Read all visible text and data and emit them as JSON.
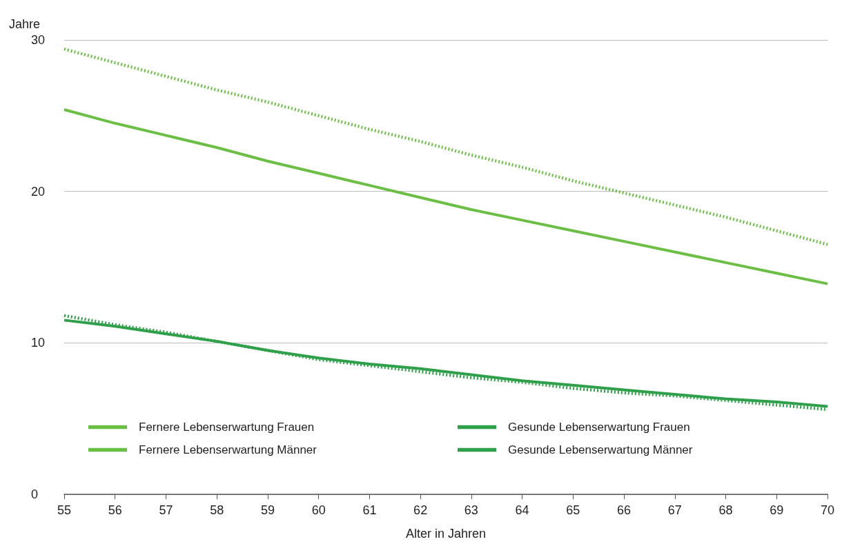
{
  "chart_data": {
    "type": "line",
    "xlabel": "Alter in Jahren",
    "ylabel": "Jahre",
    "x": [
      55,
      56,
      57,
      58,
      59,
      60,
      61,
      62,
      63,
      64,
      65,
      66,
      67,
      68,
      69,
      70
    ],
    "xlim": [
      55,
      70
    ],
    "xticks": [
      55,
      56,
      57,
      58,
      59,
      60,
      61,
      62,
      63,
      64,
      65,
      66,
      67,
      68,
      69,
      70
    ],
    "ylim": [
      0,
      30
    ],
    "yticks": [
      0,
      10,
      20,
      30
    ],
    "grid": "y",
    "legend": "bottom",
    "marker": "none",
    "series": [
      {
        "name": "Fernere Lebenserwartung Frauen",
        "color": "#6cbf45",
        "line_style": "dotted",
        "values": [
          29.4,
          28.5,
          27.6,
          26.7,
          25.9,
          25.0,
          24.1,
          23.3,
          22.4,
          21.6,
          20.7,
          19.9,
          19.1,
          18.3,
          17.4,
          16.5
        ]
      },
      {
        "name": "Fernere Lebenserwartung Männer",
        "color": "#6cbf45",
        "line_style": "solid",
        "values": [
          25.4,
          24.5,
          23.7,
          22.9,
          22.0,
          21.2,
          20.4,
          19.6,
          18.8,
          18.1,
          17.4,
          16.7,
          16.0,
          15.3,
          14.6,
          13.9
        ]
      },
      {
        "name": "Gesunde Lebenserwartung Frauen",
        "color": "#2ea04a",
        "line_style": "dotted",
        "values": [
          11.8,
          11.2,
          10.7,
          10.1,
          9.5,
          8.9,
          8.5,
          8.1,
          7.7,
          7.4,
          7.0,
          6.7,
          6.5,
          6.2,
          5.9,
          5.6
        ]
      },
      {
        "name": "Gesunde Lebenserwartung Männer",
        "color": "#2ea04a",
        "line_style": "solid",
        "values": [
          11.5,
          11.1,
          10.6,
          10.1,
          9.5,
          9.0,
          8.6,
          8.3,
          7.9,
          7.5,
          7.2,
          6.9,
          6.6,
          6.3,
          6.1,
          5.8
        ]
      }
    ]
  }
}
